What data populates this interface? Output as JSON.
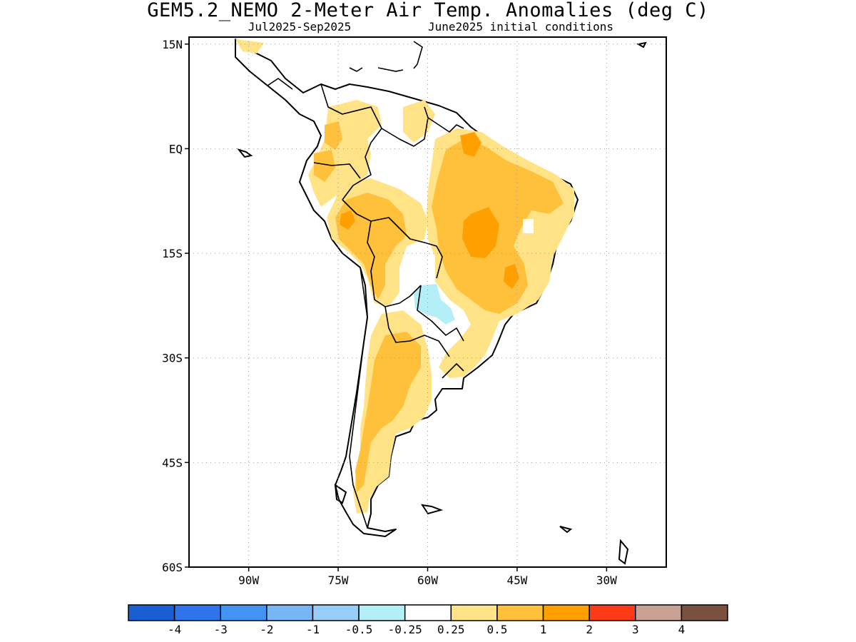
{
  "title": "GEM5.2_NEMO 2-Meter Air Temp. Anomalies (deg C)",
  "subtitle_left": "Jul2025-Sep2025",
  "subtitle_right": "June2025 initial conditions",
  "lat_ticks": [
    {
      "label": "15N",
      "value": 15
    },
    {
      "label": "EQ",
      "value": 0
    },
    {
      "label": "15S",
      "value": -15
    },
    {
      "label": "30S",
      "value": -30
    },
    {
      "label": "45S",
      "value": -45
    },
    {
      "label": "60S",
      "value": -60
    }
  ],
  "lon_ticks": [
    {
      "label": "90W",
      "value": -90
    },
    {
      "label": "75W",
      "value": -75
    },
    {
      "label": "60W",
      "value": -60
    },
    {
      "label": "45W",
      "value": -45
    },
    {
      "label": "30W",
      "value": -30
    }
  ],
  "map_extent": {
    "lon": [
      -100,
      -20
    ],
    "lat": [
      -60,
      16
    ]
  },
  "colorbar": {
    "colors": [
      "#1a5fd1",
      "#2e74eb",
      "#4394f2",
      "#78b6f5",
      "#97cdf7",
      "#b4eef6",
      "#ffffff",
      "#ffe386",
      "#ffc03c",
      "#ffa000",
      "#ff3a16",
      "#c9a195",
      "#7a5040"
    ],
    "labels": [
      "-4",
      "-3",
      "-2",
      "-1",
      "-0.5",
      "-0.25",
      "0.25",
      "0.5",
      "1",
      "2",
      "3",
      "4"
    ]
  },
  "color_scale": {
    "white": "#ffffff",
    "light_yellow": "#ffe386",
    "orange": "#ffc03c",
    "dark_orange": "#ffa000",
    "light_blue": "#b4eef6"
  }
}
